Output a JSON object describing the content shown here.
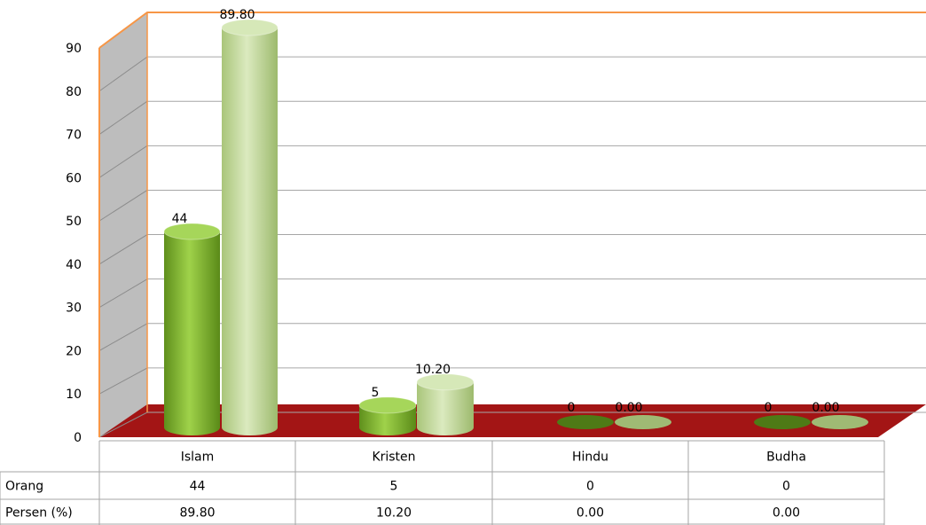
{
  "chart_data": {
    "type": "bar",
    "title": "",
    "xlabel": "",
    "ylabel": "",
    "categories": [
      "Islam",
      "Kristen",
      "Hindu",
      "Budha"
    ],
    "series": [
      {
        "name": "Orang",
        "values": [
          44,
          5,
          0,
          0
        ],
        "labels": [
          "44",
          "5",
          "0",
          "0"
        ],
        "color": "#8dc63f"
      },
      {
        "name": "Persen (%)",
        "values": [
          89.8,
          10.2,
          0.0,
          0.0
        ],
        "labels": [
          "89.80",
          "10.20",
          "0.00",
          "0.00"
        ],
        "color": "#c5dd9a"
      }
    ],
    "ylim": [
      0,
      90
    ],
    "yticks": [
      "0",
      "10",
      "20",
      "30",
      "40",
      "50",
      "60",
      "70",
      "80",
      "90"
    ],
    "grid": true,
    "legend": "data-table-below",
    "colors": {
      "wall": "#bfbfbf",
      "floor": "#a31515",
      "axis_accent": "#f79646"
    }
  }
}
